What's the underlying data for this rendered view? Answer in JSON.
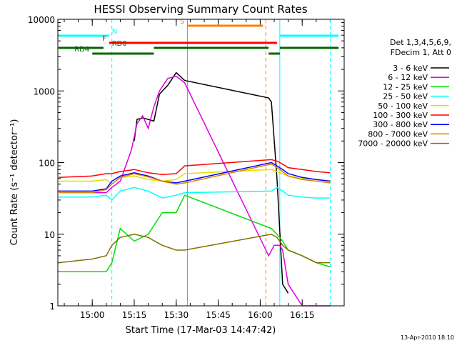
{
  "chart_data": {
    "type": "line",
    "title": "HESSI Observing Summary Count Rates",
    "xlabel": "Start Time (17-Mar-03 14:47:42)",
    "ylabel": "Count Rate (s⁻¹ detector⁻¹)",
    "y_scale": "log",
    "ylim": [
      1,
      10000
    ],
    "xlim": [
      "14:47:42",
      "16:30:00"
    ],
    "x_ticks": [
      "15:00",
      "15:15",
      "15:30",
      "15:45",
      "16:00",
      "16:15"
    ],
    "y_ticks": [
      "1",
      "10",
      "100",
      "1000",
      "10000"
    ],
    "legend_title": [
      "Det 1,3,4,5,6,9,",
      "FDecim 1, Att 0"
    ],
    "legend_position": "right",
    "timestamp": "13-Apr-2010 18:10",
    "series": [
      {
        "name": "3 - 6 keV",
        "color": "#000000",
        "x": [
          "15:15",
          "15:16",
          "15:18",
          "15:20",
          "15:22",
          "15:24",
          "15:27",
          "15:30",
          "15:33",
          "16:03",
          "16:04",
          "16:06",
          "16:08",
          "16:10"
        ],
        "values": [
          200,
          400,
          420,
          400,
          380,
          900,
          1200,
          1800,
          1400,
          800,
          700,
          60,
          2,
          1.5
        ]
      },
      {
        "name": "6 - 12 keV",
        "color": "#e000e0",
        "x": [
          "15:00",
          "15:05",
          "15:07",
          "15:10",
          "15:14",
          "15:16",
          "15:18",
          "15:20",
          "15:22",
          "15:24",
          "15:27",
          "15:30",
          "15:33",
          "16:03",
          "16:05",
          "16:07",
          "16:08",
          "16:10",
          "16:15",
          "16:20",
          "16:25"
        ],
        "values": [
          38,
          38,
          45,
          55,
          150,
          350,
          450,
          300,
          600,
          1000,
          1500,
          1600,
          1300,
          5,
          7,
          7,
          6,
          2,
          1,
          1,
          1
        ]
      },
      {
        "name": "12 - 25 keV",
        "color": "#00e000",
        "x": [
          "14:48",
          "15:00",
          "15:05",
          "15:07",
          "15:10",
          "15:15",
          "15:20",
          "15:25",
          "15:30",
          "15:33",
          "16:04",
          "16:06",
          "16:08",
          "16:10",
          "16:15",
          "16:20",
          "16:25"
        ],
        "values": [
          3,
          3,
          3,
          4,
          12,
          8,
          10,
          20,
          20,
          35,
          12,
          10,
          8,
          6,
          5,
          4,
          3.5
        ]
      },
      {
        "name": "25 - 50 keV",
        "color": "#00ffff",
        "x": [
          "14:48",
          "15:00",
          "15:05",
          "15:07",
          "15:10",
          "15:15",
          "15:20",
          "15:25",
          "15:30",
          "15:33",
          "16:04",
          "16:06",
          "16:08",
          "16:10",
          "16:15",
          "16:20",
          "16:25"
        ],
        "values": [
          33,
          33,
          35,
          30,
          40,
          45,
          40,
          32,
          35,
          38,
          40,
          45,
          40,
          35,
          33,
          32,
          32
        ]
      },
      {
        "name": "50 - 100 keV",
        "color": "#e0e000",
        "x": [
          "14:48",
          "15:00",
          "15:05",
          "15:07",
          "15:10",
          "15:15",
          "15:20",
          "15:25",
          "15:30",
          "15:33",
          "16:04",
          "16:06",
          "16:08",
          "16:10",
          "16:15",
          "16:20",
          "16:25"
        ],
        "values": [
          55,
          55,
          58,
          50,
          62,
          65,
          58,
          55,
          58,
          70,
          80,
          75,
          70,
          65,
          60,
          58,
          56
        ]
      },
      {
        "name": "100 - 300 keV",
        "color": "#ff0000",
        "x": [
          "14:48",
          "15:00",
          "15:05",
          "15:07",
          "15:10",
          "15:15",
          "15:20",
          "15:25",
          "15:30",
          "15:33",
          "16:04",
          "16:06",
          "16:08",
          "16:10",
          "16:15",
          "16:20",
          "16:25"
        ],
        "values": [
          62,
          65,
          70,
          70,
          75,
          80,
          72,
          68,
          70,
          90,
          110,
          105,
          95,
          85,
          80,
          75,
          72
        ]
      },
      {
        "name": "300 - 800 keV",
        "color": "#0000ff",
        "x": [
          "14:48",
          "15:00",
          "15:05",
          "15:07",
          "15:10",
          "15:15",
          "15:20",
          "15:25",
          "15:30",
          "15:33",
          "16:04",
          "16:06",
          "16:08",
          "16:10",
          "16:15",
          "16:20",
          "16:25"
        ],
        "values": [
          40,
          40,
          43,
          55,
          65,
          72,
          65,
          55,
          52,
          55,
          100,
          90,
          80,
          70,
          62,
          58,
          55
        ]
      },
      {
        "name": "800 - 7000 keV",
        "color": "#e08000",
        "x": [
          "14:48",
          "15:00",
          "15:05",
          "15:07",
          "15:10",
          "15:15",
          "15:20",
          "15:25",
          "15:30",
          "15:33",
          "16:04",
          "16:06",
          "16:08",
          "16:10",
          "16:15",
          "16:20",
          "16:25"
        ],
        "values": [
          38,
          38,
          42,
          50,
          62,
          70,
          63,
          55,
          50,
          52,
          95,
          85,
          75,
          65,
          58,
          55,
          52
        ]
      },
      {
        "name": "7000 - 20000 keV",
        "color": "#807000",
        "x": [
          "14:48",
          "15:00",
          "15:05",
          "15:07",
          "15:10",
          "15:15",
          "15:20",
          "15:25",
          "15:30",
          "15:33",
          "16:04",
          "16:06",
          "16:08",
          "16:10",
          "16:15",
          "16:20",
          "16:25"
        ],
        "values": [
          4,
          4.5,
          5,
          7,
          9,
          10,
          9,
          7,
          6,
          6,
          10,
          9,
          7,
          6,
          5,
          4,
          4
        ]
      }
    ],
    "status_bars": [
      {
        "label": "N",
        "color": "#00ffff",
        "segments": [
          [
            "14:48",
            "15:06"
          ],
          [
            "16:07",
            "16:28"
          ]
        ]
      },
      {
        "label": "S",
        "color": "#ff8000",
        "segments": [
          [
            "15:34",
            "16:01"
          ]
        ]
      },
      {
        "label": "F",
        "color": "#ff0000",
        "segments": [
          [
            "15:06",
            "16:06"
          ]
        ]
      },
      {
        "label": "RD0",
        "color": "#006600",
        "segments": [
          [
            "14:48",
            "15:04"
          ],
          [
            "15:22",
            "16:03"
          ],
          [
            "16:07",
            "16:28"
          ]
        ]
      },
      {
        "label": "RD4",
        "color": "#006600",
        "segments": [
          [
            "15:00",
            "15:22"
          ],
          [
            "16:03",
            "16:07"
          ]
        ]
      }
    ],
    "vertical_markers": [
      {
        "x": "15:07",
        "color": "#00ffff",
        "style": "dashed"
      },
      {
        "x": "15:34",
        "color": "#ff8000",
        "style": "solid"
      },
      {
        "x": "16:02",
        "color": "#ff8000",
        "style": "dashed"
      },
      {
        "x": "16:07",
        "color": "#00ffff",
        "style": "solid"
      },
      {
        "x": "16:25",
        "color": "#00ffff",
        "style": "dashed"
      }
    ]
  }
}
